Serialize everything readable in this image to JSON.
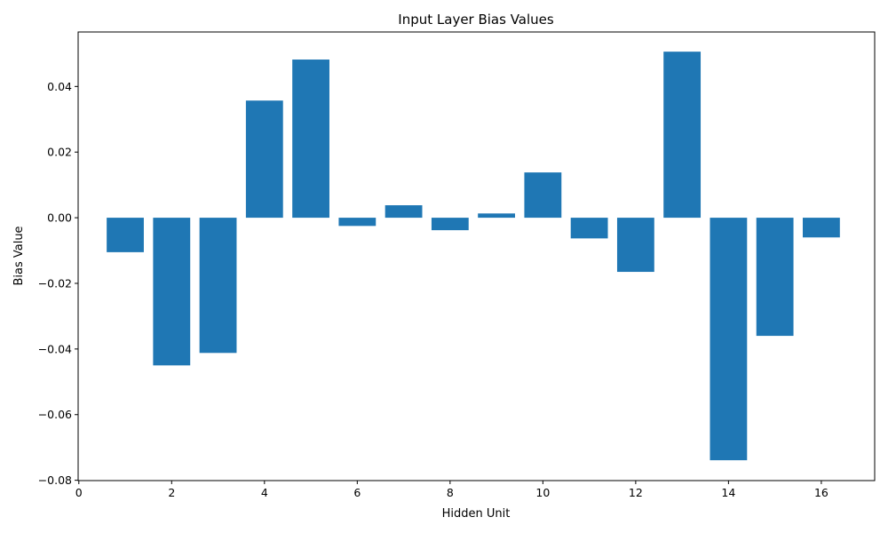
{
  "chart_data": {
    "type": "bar",
    "title": "Input Layer Bias Values",
    "xlabel": "Hidden Unit",
    "ylabel": "Bias Value",
    "x": [
      1,
      2,
      3,
      4,
      5,
      6,
      7,
      8,
      9,
      10,
      11,
      12,
      13,
      14,
      15,
      16
    ],
    "values": [
      -0.0105,
      -0.045,
      -0.0412,
      0.0357,
      0.0482,
      -0.0025,
      0.0038,
      -0.0038,
      0.0013,
      0.0138,
      -0.0063,
      -0.0165,
      0.0506,
      -0.0739,
      -0.036,
      -0.006
    ],
    "xlim": [
      -0.015,
      17.15
    ],
    "ylim": [
      -0.0801,
      0.0566
    ],
    "xticks": [
      0,
      2,
      4,
      6,
      8,
      10,
      12,
      14,
      16
    ],
    "yticks": [
      -0.08,
      -0.06,
      -0.04,
      -0.02,
      0.0,
      0.02,
      0.04
    ],
    "ytick_labels": [
      "−0.08",
      "−0.06",
      "−0.04",
      "−0.02",
      "0.00",
      "0.02",
      "0.04"
    ],
    "bar_width": 0.8,
    "grid": false,
    "legend": "none",
    "bar_color": "#1f77b4"
  }
}
